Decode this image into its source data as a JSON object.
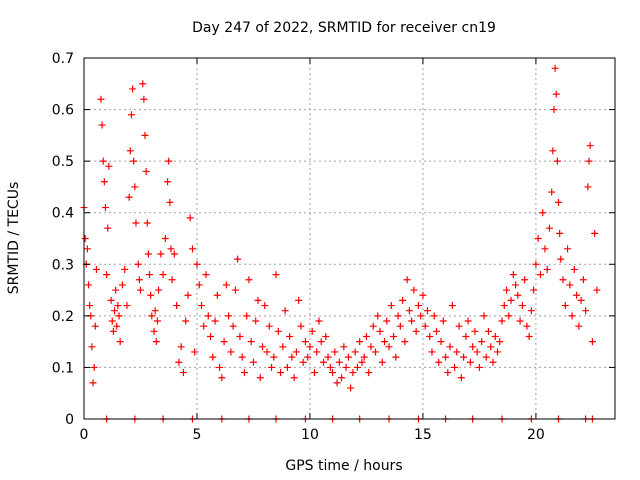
{
  "chart_data": {
    "type": "scatter",
    "title": "Day 247 of 2022, SRMTID for receiver cn19",
    "xlabel": "GPS time / hours",
    "ylabel": "SRMTID / TECUs",
    "xlim": [
      0,
      23.5
    ],
    "ylim": [
      0,
      0.7
    ],
    "xticks": [
      0,
      5,
      10,
      15,
      20
    ],
    "yticks": [
      0,
      0.1,
      0.2,
      0.3,
      0.4,
      0.5,
      0.6,
      0.7
    ],
    "xtick_labels": [
      "0",
      "5",
      "10",
      "15",
      "20"
    ],
    "ytick_labels": [
      "0",
      "0.1",
      "0.2",
      "0.3",
      "0.4",
      "0.5",
      "0.6",
      "0.7"
    ],
    "grid": true,
    "marker": "+",
    "color": "#ff0000",
    "series": [
      {
        "name": "SRMTID",
        "x": [
          0.0,
          0.05,
          0.1,
          0.15,
          0.2,
          0.25,
          0.3,
          0.35,
          0.4,
          0.45,
          0.5,
          0.55,
          0.75,
          0.8,
          0.85,
          0.9,
          0.95,
          1.0,
          1.05,
          1.1,
          1.2,
          1.25,
          1.3,
          1.35,
          1.4,
          1.45,
          1.5,
          1.55,
          1.6,
          1.7,
          1.8,
          1.9,
          2.0,
          2.05,
          2.1,
          2.15,
          2.2,
          2.25,
          2.3,
          2.4,
          2.45,
          2.5,
          2.6,
          2.65,
          2.7,
          2.75,
          2.8,
          2.85,
          2.9,
          2.95,
          3.0,
          3.1,
          3.15,
          3.2,
          3.25,
          3.3,
          3.4,
          3.5,
          3.6,
          3.7,
          3.75,
          3.8,
          3.85,
          3.9,
          4.0,
          4.1,
          4.2,
          4.3,
          4.4,
          4.5,
          4.6,
          4.7,
          4.8,
          4.9,
          5.0,
          5.1,
          5.2,
          5.3,
          5.4,
          5.5,
          5.6,
          5.7,
          5.8,
          5.9,
          6.0,
          6.1,
          6.2,
          6.3,
          6.4,
          6.5,
          6.6,
          6.7,
          6.8,
          6.9,
          7.0,
          7.1,
          7.2,
          7.3,
          7.4,
          7.5,
          7.6,
          7.7,
          7.8,
          7.9,
          8.0,
          8.1,
          8.2,
          8.3,
          8.4,
          8.5,
          8.6,
          8.7,
          8.8,
          8.9,
          9.0,
          9.1,
          9.2,
          9.3,
          9.4,
          9.5,
          9.6,
          9.7,
          9.8,
          9.9,
          10.0,
          10.1,
          10.2,
          10.3,
          10.4,
          10.5,
          10.6,
          10.7,
          10.8,
          10.9,
          11.0,
          11.1,
          11.2,
          11.3,
          11.4,
          11.5,
          11.6,
          11.7,
          11.8,
          11.9,
          12.0,
          12.1,
          12.2,
          12.3,
          12.4,
          12.5,
          12.6,
          12.7,
          12.8,
          12.9,
          13.0,
          13.1,
          13.2,
          13.3,
          13.4,
          13.5,
          13.6,
          13.7,
          13.8,
          13.9,
          14.0,
          14.1,
          14.2,
          14.3,
          14.4,
          14.5,
          14.6,
          14.7,
          14.8,
          14.9,
          15.0,
          15.1,
          15.2,
          15.3,
          15.4,
          15.5,
          15.6,
          15.7,
          15.8,
          15.9,
          16.0,
          16.1,
          16.2,
          16.3,
          16.4,
          16.5,
          16.6,
          16.7,
          16.8,
          16.9,
          17.0,
          17.1,
          17.2,
          17.3,
          17.4,
          17.5,
          17.6,
          17.7,
          17.8,
          17.9,
          18.0,
          18.1,
          18.2,
          18.3,
          18.4,
          18.5,
          18.6,
          18.7,
          18.8,
          18.9,
          19.0,
          19.1,
          19.2,
          19.3,
          19.4,
          19.5,
          19.6,
          19.7,
          19.8,
          19.9,
          20.0,
          20.1,
          20.2,
          20.3,
          20.4,
          20.5,
          20.6,
          20.7,
          20.75,
          20.8,
          20.85,
          20.9,
          20.95,
          21.0,
          21.05,
          21.1,
          21.2,
          21.3,
          21.4,
          21.5,
          21.6,
          21.7,
          21.8,
          21.9,
          22.0,
          22.1,
          22.2,
          22.3,
          22.35,
          22.4,
          22.5,
          22.6,
          22.7,
          1.0,
          2.25,
          3.5,
          4.8,
          6.1,
          7.3,
          8.5,
          9.8,
          11.0,
          12.2,
          13.5,
          14.8,
          16.0,
          17.2,
          18.5,
          19.8,
          21.0,
          22.2,
          22.5
        ],
        "y": [
          0.41,
          0.35,
          0.3,
          0.33,
          0.26,
          0.22,
          0.2,
          0.14,
          0.07,
          0.1,
          0.18,
          0.29,
          0.62,
          0.57,
          0.5,
          0.46,
          0.41,
          0.28,
          0.37,
          0.49,
          0.23,
          0.19,
          0.17,
          0.21,
          0.25,
          0.18,
          0.22,
          0.2,
          0.15,
          0.26,
          0.29,
          0.22,
          0.43,
          0.52,
          0.59,
          0.64,
          0.5,
          0.45,
          0.38,
          0.3,
          0.27,
          0.25,
          0.65,
          0.62,
          0.55,
          0.48,
          0.38,
          0.32,
          0.28,
          0.24,
          0.2,
          0.17,
          0.21,
          0.15,
          0.19,
          0.25,
          0.32,
          0.28,
          0.35,
          0.46,
          0.5,
          0.42,
          0.33,
          0.27,
          0.32,
          0.22,
          0.11,
          0.14,
          0.09,
          0.19,
          0.24,
          0.39,
          0.33,
          0.13,
          0.3,
          0.26,
          0.22,
          0.18,
          0.28,
          0.2,
          0.16,
          0.12,
          0.19,
          0.24,
          0.1,
          0.08,
          0.15,
          0.26,
          0.2,
          0.13,
          0.18,
          0.25,
          0.31,
          0.16,
          0.12,
          0.09,
          0.2,
          0.27,
          0.15,
          0.11,
          0.19,
          0.23,
          0.08,
          0.14,
          0.22,
          0.13,
          0.18,
          0.1,
          0.12,
          0.28,
          0.17,
          0.09,
          0.14,
          0.21,
          0.1,
          0.16,
          0.12,
          0.08,
          0.13,
          0.23,
          0.18,
          0.11,
          0.15,
          0.12,
          0.14,
          0.17,
          0.09,
          0.13,
          0.19,
          0.15,
          0.11,
          0.16,
          0.12,
          0.1,
          0.09,
          0.13,
          0.07,
          0.11,
          0.08,
          0.14,
          0.1,
          0.12,
          0.06,
          0.09,
          0.13,
          0.1,
          0.15,
          0.11,
          0.12,
          0.16,
          0.09,
          0.14,
          0.18,
          0.13,
          0.2,
          0.17,
          0.11,
          0.15,
          0.19,
          0.14,
          0.22,
          0.16,
          0.12,
          0.2,
          0.18,
          0.23,
          0.15,
          0.27,
          0.21,
          0.19,
          0.25,
          0.17,
          0.22,
          0.2,
          0.24,
          0.18,
          0.21,
          0.16,
          0.13,
          0.2,
          0.17,
          0.11,
          0.15,
          0.19,
          0.12,
          0.09,
          0.14,
          0.22,
          0.1,
          0.13,
          0.18,
          0.08,
          0.12,
          0.16,
          0.19,
          0.11,
          0.14,
          0.17,
          0.13,
          0.1,
          0.15,
          0.2,
          0.12,
          0.17,
          0.14,
          0.11,
          0.16,
          0.13,
          0.15,
          0.19,
          0.22,
          0.25,
          0.2,
          0.23,
          0.28,
          0.26,
          0.24,
          0.19,
          0.22,
          0.27,
          0.18,
          0.16,
          0.21,
          0.25,
          0.3,
          0.35,
          0.28,
          0.4,
          0.33,
          0.29,
          0.37,
          0.44,
          0.52,
          0.6,
          0.68,
          0.63,
          0.5,
          0.42,
          0.36,
          0.31,
          0.27,
          0.22,
          0.33,
          0.26,
          0.2,
          0.29,
          0.24,
          0.18,
          0.23,
          0.27,
          0.21,
          0.45,
          0.5,
          0.53,
          0.15,
          0.36,
          0.25,
          0.0,
          0.0,
          0.0,
          0.0,
          0.0,
          0.0,
          0.0,
          0.0,
          0.0,
          0.0,
          0.0,
          0.0,
          0.0,
          0.0,
          0.0,
          0.0,
          0.0,
          0.0,
          0.0
        ]
      }
    ]
  }
}
